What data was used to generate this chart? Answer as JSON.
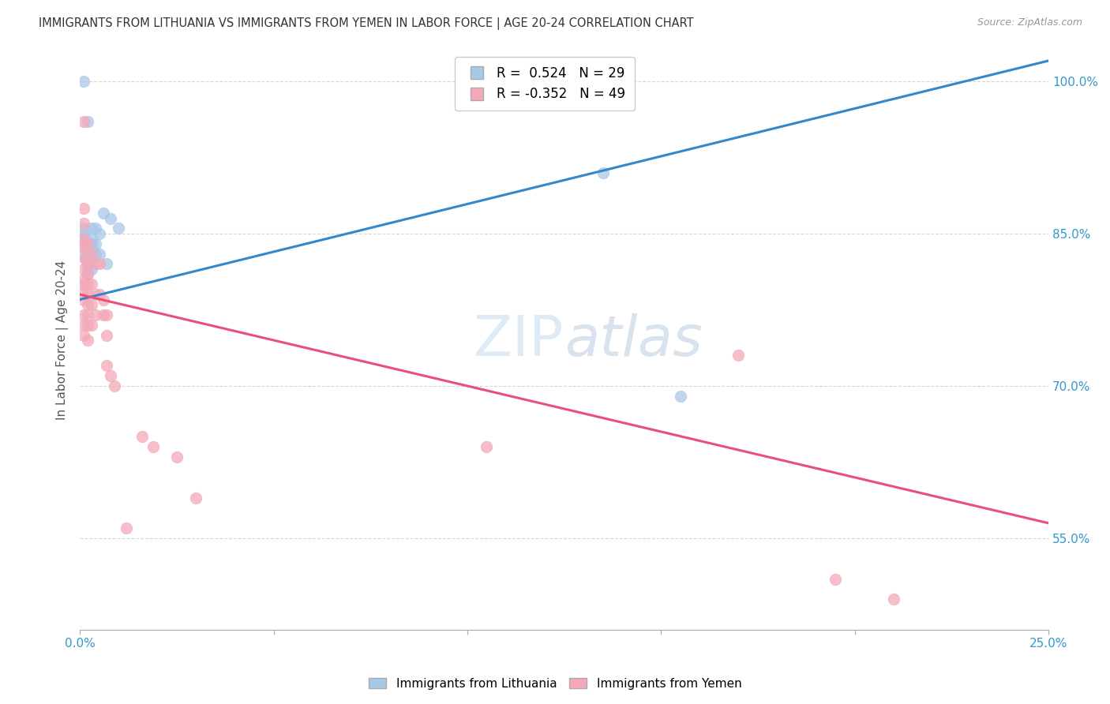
{
  "title": "IMMIGRANTS FROM LITHUANIA VS IMMIGRANTS FROM YEMEN IN LABOR FORCE | AGE 20-24 CORRELATION CHART",
  "source": "Source: ZipAtlas.com",
  "ylabel": "In Labor Force | Age 20-24",
  "xlim": [
    0.0,
    0.25
  ],
  "ylim": [
    0.46,
    1.03
  ],
  "xticks": [
    0.0,
    0.05,
    0.1,
    0.15,
    0.2,
    0.25
  ],
  "xticklabels": [
    "0.0%",
    "",
    "",
    "",
    "",
    "25.0%"
  ],
  "yticks": [
    0.55,
    0.7,
    0.85,
    1.0
  ],
  "yticklabels": [
    "55.0%",
    "70.0%",
    "85.0%",
    "100.0%"
  ],
  "grid_color": "#cccccc",
  "background_color": "#ffffff",
  "lithuania_color": "#a8c8e8",
  "yemen_color": "#f4a8b8",
  "lithuania_line_color": "#3388cc",
  "yemen_line_color": "#e8507a",
  "lithuania_R": 0.524,
  "lithuania_N": 29,
  "yemen_R": -0.352,
  "yemen_N": 49,
  "watermark_zip": "ZIP",
  "watermark_atlas": "atlas",
  "lithuania_line": [
    0.0,
    0.785,
    0.25,
    1.02
  ],
  "yemen_line": [
    0.0,
    0.79,
    0.25,
    0.565
  ],
  "lithuania_points": [
    [
      0.001,
      1.0
    ],
    [
      0.001,
      0.855
    ],
    [
      0.001,
      0.85
    ],
    [
      0.0015,
      0.845
    ],
    [
      0.001,
      0.84
    ],
    [
      0.001,
      0.83
    ],
    [
      0.0015,
      0.825
    ],
    [
      0.002,
      0.83
    ],
    [
      0.002,
      0.82
    ],
    [
      0.002,
      0.815
    ],
    [
      0.002,
      0.81
    ],
    [
      0.003,
      0.855
    ],
    [
      0.003,
      0.845
    ],
    [
      0.003,
      0.84
    ],
    [
      0.003,
      0.835
    ],
    [
      0.003,
      0.825
    ],
    [
      0.003,
      0.815
    ],
    [
      0.004,
      0.855
    ],
    [
      0.004,
      0.84
    ],
    [
      0.004,
      0.83
    ],
    [
      0.005,
      0.85
    ],
    [
      0.005,
      0.83
    ],
    [
      0.006,
      0.87
    ],
    [
      0.007,
      0.82
    ],
    [
      0.008,
      0.865
    ],
    [
      0.01,
      0.855
    ],
    [
      0.135,
      0.91
    ],
    [
      0.155,
      0.69
    ],
    [
      0.002,
      0.96
    ]
  ],
  "yemen_points": [
    [
      0.001,
      0.96
    ],
    [
      0.001,
      0.875
    ],
    [
      0.001,
      0.86
    ],
    [
      0.001,
      0.845
    ],
    [
      0.001,
      0.84
    ],
    [
      0.001,
      0.835
    ],
    [
      0.0015,
      0.825
    ],
    [
      0.001,
      0.815
    ],
    [
      0.001,
      0.805
    ],
    [
      0.001,
      0.8
    ],
    [
      0.001,
      0.795
    ],
    [
      0.001,
      0.785
    ],
    [
      0.001,
      0.77
    ],
    [
      0.001,
      0.76
    ],
    [
      0.001,
      0.75
    ],
    [
      0.002,
      0.84
    ],
    [
      0.002,
      0.82
    ],
    [
      0.002,
      0.81
    ],
    [
      0.002,
      0.8
    ],
    [
      0.002,
      0.79
    ],
    [
      0.002,
      0.78
    ],
    [
      0.002,
      0.77
    ],
    [
      0.002,
      0.76
    ],
    [
      0.002,
      0.745
    ],
    [
      0.003,
      0.83
    ],
    [
      0.003,
      0.8
    ],
    [
      0.003,
      0.78
    ],
    [
      0.003,
      0.76
    ],
    [
      0.004,
      0.82
    ],
    [
      0.004,
      0.79
    ],
    [
      0.004,
      0.77
    ],
    [
      0.005,
      0.82
    ],
    [
      0.005,
      0.79
    ],
    [
      0.006,
      0.785
    ],
    [
      0.006,
      0.77
    ],
    [
      0.007,
      0.77
    ],
    [
      0.007,
      0.75
    ],
    [
      0.007,
      0.72
    ],
    [
      0.008,
      0.71
    ],
    [
      0.009,
      0.7
    ],
    [
      0.012,
      0.56
    ],
    [
      0.016,
      0.65
    ],
    [
      0.019,
      0.64
    ],
    [
      0.025,
      0.63
    ],
    [
      0.03,
      0.59
    ],
    [
      0.105,
      0.64
    ],
    [
      0.17,
      0.73
    ],
    [
      0.195,
      0.51
    ],
    [
      0.21,
      0.49
    ]
  ]
}
